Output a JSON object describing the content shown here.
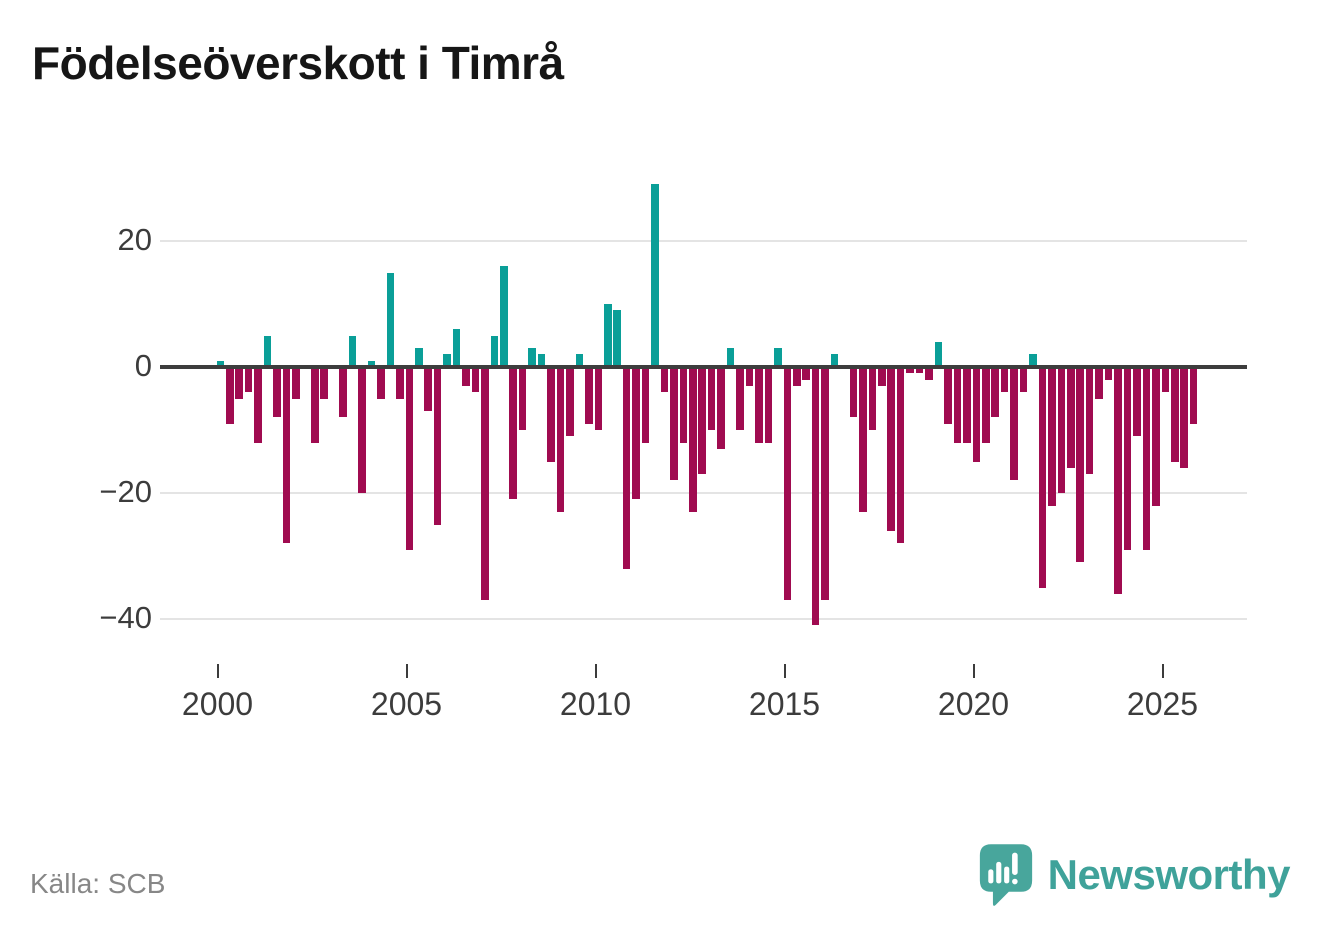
{
  "title": "Födelseöverskott i Timrå",
  "source": "Källa: SCB",
  "brand": {
    "name": "Newsworthy",
    "color": "#3fa29a",
    "icon": "speech-bubble-bar-chart"
  },
  "colors": {
    "positive_bar": "#0a9f98",
    "negative_bar": "#a00b50",
    "zero_axis": "#3d3d3d",
    "gridline": "#e4e4e4",
    "tick_text": "#3c3c3c",
    "source_text": "#878787"
  },
  "chart_data": {
    "type": "bar",
    "x_unit": "quarter",
    "title": "Födelseöverskott i Timrå",
    "xlabel": "",
    "ylabel": "",
    "ylim": [
      -44,
      31
    ],
    "grid": "horizontal",
    "y_ticks": [
      {
        "value": 20,
        "label": "20"
      },
      {
        "value": 0,
        "label": "0"
      },
      {
        "value": -20,
        "label": "−20"
      },
      {
        "value": -40,
        "label": "−40"
      }
    ],
    "x_ticks": [
      {
        "year": 2000,
        "label": "2000"
      },
      {
        "year": 2005,
        "label": "2005"
      },
      {
        "year": 2010,
        "label": "2010"
      },
      {
        "year": 2015,
        "label": "2015"
      },
      {
        "year": 2020,
        "label": "2020"
      },
      {
        "year": 2025,
        "label": "2025"
      }
    ],
    "years": [
      {
        "year": 2000,
        "values": [
          1,
          -9,
          -5,
          -4
        ]
      },
      {
        "year": 2001,
        "values": [
          -12,
          5,
          -8,
          -28
        ]
      },
      {
        "year": 2002,
        "values": [
          -5,
          0,
          -12,
          -5
        ]
      },
      {
        "year": 2003,
        "values": [
          0,
          -8,
          5,
          -20
        ]
      },
      {
        "year": 2004,
        "values": [
          1,
          -5,
          15,
          -5
        ]
      },
      {
        "year": 2005,
        "values": [
          -29,
          3,
          -7,
          -25
        ]
      },
      {
        "year": 2006,
        "values": [
          2,
          6,
          -3,
          -4
        ]
      },
      {
        "year": 2007,
        "values": [
          -37,
          5,
          16,
          -21
        ]
      },
      {
        "year": 2008,
        "values": [
          -10,
          3,
          2,
          -15
        ]
      },
      {
        "year": 2009,
        "values": [
          -23,
          -11,
          2,
          -9
        ]
      },
      {
        "year": 2010,
        "values": [
          -10,
          10,
          9,
          -32
        ]
      },
      {
        "year": 2011,
        "values": [
          -21,
          -12,
          29,
          -4
        ]
      },
      {
        "year": 2012,
        "values": [
          -18,
          -12,
          -23,
          -17
        ]
      },
      {
        "year": 2013,
        "values": [
          -10,
          -13,
          3,
          -10
        ]
      },
      {
        "year": 2014,
        "values": [
          -3,
          -12,
          -12,
          3
        ]
      },
      {
        "year": 2015,
        "values": [
          -37,
          -3,
          -2,
          -41
        ]
      },
      {
        "year": 2016,
        "values": [
          -37,
          2,
          0,
          -8
        ]
      },
      {
        "year": 2017,
        "values": [
          -23,
          -10,
          -3,
          -26
        ]
      },
      {
        "year": 2018,
        "values": [
          -28,
          -1,
          -1,
          -2
        ]
      },
      {
        "year": 2019,
        "values": [
          4,
          -9,
          -12,
          -12
        ]
      },
      {
        "year": 2020,
        "values": [
          -15,
          -12,
          -8,
          -4
        ]
      },
      {
        "year": 2021,
        "values": [
          -18,
          -4,
          2,
          -35
        ]
      },
      {
        "year": 2022,
        "values": [
          -22,
          -20,
          -16,
          -31
        ]
      },
      {
        "year": 2023,
        "values": [
          -17,
          -5,
          -2,
          -36
        ]
      },
      {
        "year": 2024,
        "values": [
          -29,
          -11,
          -29,
          -22
        ]
      },
      {
        "year": 2025,
        "values": [
          -4,
          -15,
          -16,
          -9
        ]
      }
    ]
  }
}
